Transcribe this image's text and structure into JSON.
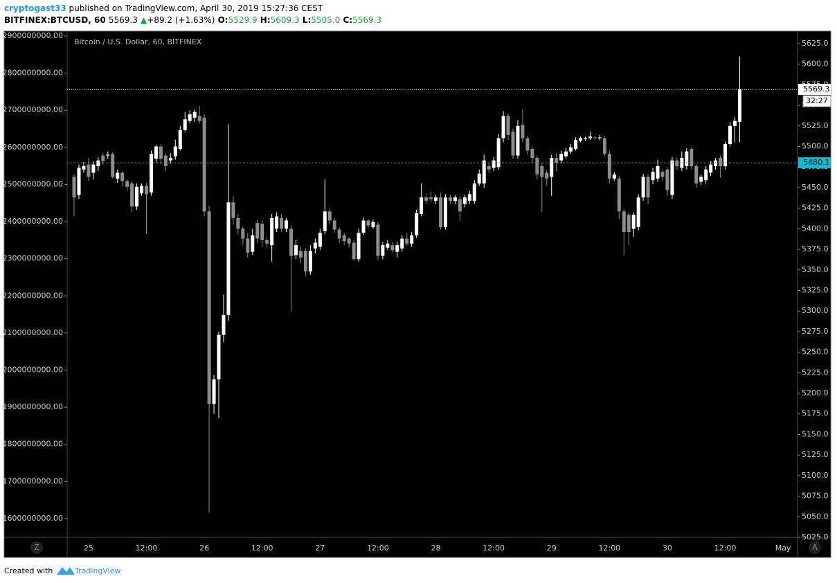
{
  "header": {
    "author": "cryptogast33",
    "published": "published on TradingView.com, April 30, 2019 15:27:36 CEST",
    "symbol": "BITFINEX:BTCUSD, 60",
    "last": "5569.3",
    "arrow": "▲",
    "change": "+89.2 (+1.63%)",
    "ohlc": [
      {
        "label": "O:",
        "value": "5529.9"
      },
      {
        "label": "H:",
        "value": "5609.3"
      },
      {
        "label": "L:",
        "value": "5505.0"
      },
      {
        "label": "C:",
        "value": "5569.3"
      }
    ]
  },
  "ui": {
    "left_button": "Z",
    "right_button": "A"
  },
  "footer": {
    "created": "Created with",
    "brand": "TradingView"
  },
  "chart_data": {
    "type": "candlestick",
    "title": "Bitcoin / U.S. Dollar, 60, BITFINEX",
    "up_color": "#ffffff",
    "down_color": "#8c8c8c",
    "categories": [
      null,
      null,
      null,
      "25",
      null,
      null,
      null,
      null,
      null,
      null,
      null,
      null,
      null,
      null,
      null,
      "12:00",
      null,
      null,
      null,
      null,
      null,
      null,
      null,
      null,
      null,
      null,
      null,
      "26",
      null,
      null,
      null,
      null,
      null,
      null,
      null,
      null,
      null,
      null,
      null,
      "12:00",
      null,
      null,
      null,
      null,
      null,
      null,
      null,
      null,
      null,
      null,
      null,
      "27",
      null,
      null,
      null,
      null,
      null,
      null,
      null,
      null,
      null,
      null,
      null,
      "12:00",
      null,
      null,
      null,
      null,
      null,
      null,
      null,
      null,
      null,
      null,
      null,
      "28",
      null,
      null,
      null,
      null,
      null,
      null,
      null,
      null,
      null,
      null,
      null,
      "12:00",
      null,
      null,
      null,
      null,
      null,
      null,
      null,
      null,
      null,
      null,
      null,
      "29",
      null,
      null,
      null,
      null,
      null,
      null,
      null,
      null,
      null,
      null,
      null,
      "12:00",
      null,
      null,
      null,
      null,
      null,
      null,
      null,
      null,
      null,
      null,
      null,
      "30",
      null,
      null,
      null,
      null,
      null,
      null,
      null,
      null,
      null,
      null,
      null,
      "12:00",
      null,
      null,
      null,
      null,
      null,
      null,
      null,
      null,
      null,
      null,
      null,
      "May"
    ],
    "open": [
      5463,
      5441,
      5472,
      5478,
      5468,
      5476,
      5489,
      5489,
      5491,
      5461,
      5468,
      5458,
      5455,
      5427,
      5443,
      5452,
      5444,
      5485,
      5500,
      5489,
      5483,
      5488,
      5497,
      5520,
      5531,
      5535,
      5537,
      5535,
      5421,
      5187,
      5217,
      5271,
      5295,
      5432,
      5413,
      5400,
      5388,
      5372,
      5407,
      5406,
      5386,
      5380,
      5400,
      5413,
      5400,
      5400,
      5368,
      5373,
      5373,
      5348,
      5376,
      5378,
      5397,
      5421,
      5410,
      5399,
      5392,
      5388,
      5383,
      5363,
      5395,
      5410,
      5402,
      5405,
      5367,
      5377,
      5380,
      5372,
      5376,
      5388,
      5382,
      5392,
      5418,
      5438,
      5438,
      5434,
      5438,
      5402,
      5438,
      5434,
      5436,
      5430,
      5434,
      5434,
      5455,
      5455,
      5476,
      5474,
      5475,
      5510,
      5537,
      5518,
      5489,
      5526,
      5510,
      5497,
      5486,
      5476,
      5468,
      5463,
      5486,
      5483,
      5488,
      5494,
      5497,
      5507,
      5509,
      5510,
      5511,
      5510,
      5510,
      5491,
      5461,
      5461,
      5421,
      5417,
      5400,
      5402,
      5438,
      5463,
      5459,
      5461,
      5469,
      5472,
      5441,
      5483,
      5474,
      5476,
      5497,
      5476,
      5457,
      5459,
      5468,
      5476,
      5486,
      5476,
      5503,
      5525,
      5529.9,
      null,
      null,
      null,
      null,
      null,
      null,
      null,
      null,
      null
    ],
    "high": [
      5466,
      5478,
      5481,
      5486,
      5482,
      5487,
      5492,
      5494,
      5493,
      5472,
      5470,
      5460,
      5458,
      5455,
      5455,
      5456,
      5495,
      5502,
      5503,
      5492,
      5492,
      5508,
      5525,
      5542,
      5544,
      5545,
      5549,
      5539,
      5428,
      5222,
      5275,
      5320,
      5527,
      5440,
      5418,
      5403,
      5395,
      5400,
      5411,
      5410,
      5390,
      5418,
      5420,
      5418,
      5413,
      5404,
      5386,
      5378,
      5376,
      5380,
      5388,
      5400,
      5460,
      5425,
      5413,
      5402,
      5395,
      5390,
      5386,
      5400,
      5414,
      5412,
      5411,
      5408,
      5384,
      5386,
      5384,
      5384,
      5392,
      5395,
      5396,
      5423,
      5455,
      5443,
      5445,
      5441,
      5443,
      5442,
      5441,
      5441,
      5440,
      5441,
      5446,
      5459,
      5472,
      5490,
      5480,
      5487,
      5515,
      5543,
      5540,
      5522,
      5532,
      5545,
      5513,
      5500,
      5489,
      5480,
      5471,
      5490,
      5492,
      5495,
      5498,
      5503,
      5511,
      5512,
      5512,
      5518,
      5513,
      5514,
      5513,
      5495,
      5469,
      5464,
      5424,
      5420,
      5420,
      5442,
      5467,
      5466,
      5474,
      5484,
      5472,
      5475,
      5487,
      5486,
      5494,
      5498,
      5499,
      5479,
      5466,
      5476,
      5482,
      5486,
      5489,
      5506,
      5530,
      5536,
      5609.3,
      null,
      null,
      null,
      null,
      null,
      null,
      null,
      null,
      null
    ],
    "low": [
      5415,
      5436,
      5468,
      5458,
      5460,
      5470,
      5478,
      5485,
      5461,
      5456,
      5452,
      5446,
      5420,
      5423,
      5440,
      5394,
      5440,
      5480,
      5478,
      5470,
      5479,
      5484,
      5495,
      5518,
      5528,
      5530,
      5528,
      5415,
      5055,
      5175,
      5170,
      5262,
      5288,
      5405,
      5393,
      5380,
      5365,
      5368,
      5382,
      5378,
      5377,
      5360,
      5396,
      5396,
      5396,
      5300,
      5363,
      5358,
      5342,
      5344,
      5370,
      5374,
      5393,
      5405,
      5395,
      5383,
      5380,
      5377,
      5361,
      5360,
      5392,
      5401,
      5400,
      5362,
      5363,
      5374,
      5371,
      5365,
      5372,
      5379,
      5378,
      5389,
      5415,
      5430,
      5432,
      5430,
      5399,
      5399,
      5430,
      5430,
      5410,
      5426,
      5430,
      5430,
      5452,
      5450,
      5468,
      5470,
      5472,
      5505,
      5508,
      5485,
      5485,
      5505,
      5490,
      5480,
      5460,
      5420,
      5452,
      5440,
      5470,
      5479,
      5485,
      5491,
      5495,
      5505,
      5507,
      5508,
      5508,
      5507,
      5488,
      5455,
      5458,
      5412,
      5368,
      5380,
      5390,
      5398,
      5434,
      5430,
      5454,
      5457,
      5458,
      5440,
      5436,
      5472,
      5470,
      5472,
      5472,
      5450,
      5453,
      5455,
      5464,
      5472,
      5462,
      5472,
      5500,
      5505,
      5505.0,
      null,
      null,
      null,
      null,
      null,
      null,
      null,
      null,
      null
    ],
    "close": [
      5438,
      5474,
      5476,
      5463,
      5478,
      5483,
      5482,
      5490,
      5463,
      5468,
      5458,
      5451,
      5427,
      5451,
      5452,
      5442,
      5491,
      5500,
      5485,
      5476,
      5486,
      5500,
      5520,
      5533,
      5539,
      5542,
      5531,
      5421,
      5187,
      5217,
      5271,
      5295,
      5432,
      5413,
      5400,
      5388,
      5371,
      5392,
      5388,
      5386,
      5382,
      5413,
      5415,
      5400,
      5410,
      5367,
      5380,
      5365,
      5348,
      5373,
      5383,
      5395,
      5421,
      5410,
      5399,
      5388,
      5385,
      5382,
      5363,
      5395,
      5410,
      5404,
      5408,
      5367,
      5380,
      5382,
      5374,
      5380,
      5388,
      5382,
      5392,
      5419,
      5438,
      5434,
      5436,
      5438,
      5402,
      5438,
      5434,
      5438,
      5421,
      5438,
      5442,
      5455,
      5467,
      5483,
      5472,
      5483,
      5510,
      5537,
      5514,
      5489,
      5525,
      5510,
      5495,
      5486,
      5466,
      5463,
      5461,
      5486,
      5480,
      5491,
      5494,
      5499,
      5508,
      5510,
      5510,
      5512,
      5510,
      5511,
      5491,
      5461,
      5466,
      5421,
      5396,
      5396,
      5417,
      5438,
      5463,
      5438,
      5469,
      5476,
      5463,
      5447,
      5483,
      5476,
      5486,
      5494,
      5476,
      5455,
      5463,
      5472,
      5478,
      5483,
      5476,
      5503,
      5525,
      5531,
      5569.3,
      null,
      null,
      null,
      null,
      null,
      null,
      null,
      null,
      null
    ],
    "ylim": [
      5025,
      5640.1
    ],
    "yticks": [
      {
        "value": 5025,
        "label": "5025.0"
      },
      {
        "value": 5050,
        "label": "5050.0"
      },
      {
        "value": 5075,
        "label": "5075.0"
      },
      {
        "value": 5100,
        "label": "5100.0"
      },
      {
        "value": 5125,
        "label": "5125.0"
      },
      {
        "value": 5150,
        "label": "5150.0"
      },
      {
        "value": 5175,
        "label": "5175.0"
      },
      {
        "value": 5200,
        "label": "5200.0"
      },
      {
        "value": 5225,
        "label": "5225.0"
      },
      {
        "value": 5250,
        "label": "5250.0"
      },
      {
        "value": 5275,
        "label": "5275.0"
      },
      {
        "value": 5300,
        "label": "5300.0"
      },
      {
        "value": 5325,
        "label": "5325.0"
      },
      {
        "value": 5350,
        "label": "5350.0"
      },
      {
        "value": 5375,
        "label": "5375.0"
      },
      {
        "value": 5400,
        "label": "5400.0"
      },
      {
        "value": 5425,
        "label": "5425.0"
      },
      {
        "value": 5450,
        "label": "5450.0"
      },
      {
        "value": 5475,
        "label": "5475.0"
      },
      {
        "value": 5500,
        "label": "5500.0"
      },
      {
        "value": 5525,
        "label": "5525.0"
      },
      {
        "value": 5550,
        "label": "5550.0"
      },
      {
        "value": 5575,
        "label": "5575.0"
      },
      {
        "value": 5600,
        "label": "5600.0"
      },
      {
        "value": 5625,
        "label": "5625.0"
      }
    ],
    "y2lim": [
      1549600000,
      2913000000
    ],
    "y2ticks": [
      {
        "value": 1600000000,
        "label": "1600000000.00"
      },
      {
        "value": 1700000000,
        "label": "1700000000.00"
      },
      {
        "value": 1800000000,
        "label": "1800000000.00"
      },
      {
        "value": 1900000000,
        "label": "1900000000.00"
      },
      {
        "value": 2000000000,
        "label": "2000000000.00"
      },
      {
        "value": 2100000000,
        "label": "2100000000.00"
      },
      {
        "value": 2200000000,
        "label": "2200000000.00"
      },
      {
        "value": 2300000000,
        "label": "2300000000.00"
      },
      {
        "value": 2400000000,
        "label": "2400000000.00"
      },
      {
        "value": 2500000000,
        "label": "2500000000.00"
      },
      {
        "value": 2600000000,
        "label": "2600000000.00"
      },
      {
        "value": 2700000000,
        "label": "2700000000.00"
      },
      {
        "value": 2800000000,
        "label": "2800000000.00"
      },
      {
        "value": 2900000000,
        "label": "2900000000.00"
      }
    ],
    "price_lines": [
      {
        "value": 5569.3,
        "color": "#ffffff"
      },
      {
        "value": 5480.1,
        "color": "#00bcd4"
      }
    ],
    "countdown": "32:27"
  }
}
